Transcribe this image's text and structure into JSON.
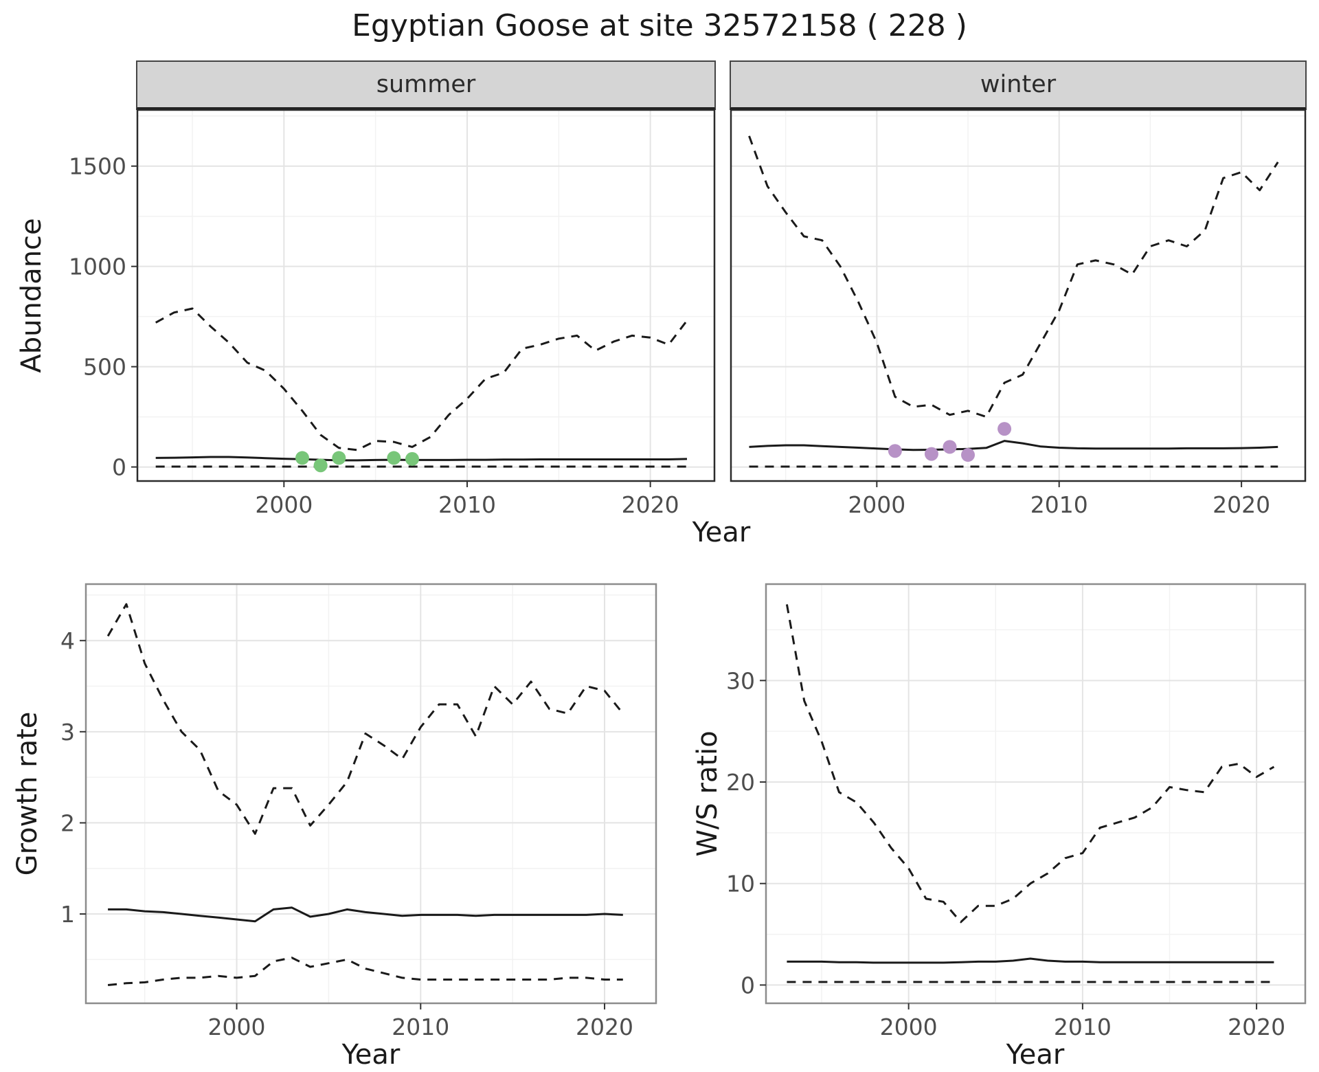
{
  "page": {
    "title": "Egyptian Goose at site 32572158 ( 228 )"
  },
  "colors": {
    "line": "#1a1a1a",
    "summer_points": "#78c679",
    "winter_points": "#b792c6",
    "strip_background": "#d5d5d5"
  },
  "chart_data": [
    {
      "type": "line",
      "facet": "summer",
      "xlabel": "Year",
      "ylabel": "Abundance",
      "xlim": [
        1992,
        2023.5
      ],
      "ylim": [
        -70,
        1780
      ],
      "x_ticks": [
        2000,
        2010,
        2020
      ],
      "y_ticks": [
        0,
        500,
        1000,
        1500
      ],
      "years": [
        1993,
        1994,
        1995,
        1996,
        1997,
        1998,
        1999,
        2000,
        2001,
        2002,
        2003,
        2004,
        2005,
        2006,
        2007,
        2008,
        2009,
        2010,
        2011,
        2012,
        2013,
        2014,
        2015,
        2016,
        2017,
        2018,
        2019,
        2020,
        2021,
        2022
      ],
      "series": [
        {
          "name": "upper-ci",
          "style": "dashed",
          "values": [
            720,
            770,
            790,
            700,
            620,
            520,
            480,
            390,
            280,
            160,
            95,
            85,
            130,
            125,
            100,
            150,
            260,
            340,
            440,
            470,
            590,
            610,
            640,
            655,
            580,
            625,
            655,
            645,
            610,
            730
          ]
        },
        {
          "name": "median",
          "style": "solid",
          "values": [
            45,
            46,
            48,
            50,
            50,
            47,
            44,
            41,
            39,
            36,
            33,
            33,
            35,
            36,
            35,
            35,
            35,
            36,
            36,
            37,
            37,
            38,
            38,
            38,
            38,
            38,
            38,
            38,
            38,
            40
          ]
        },
        {
          "name": "lower-ci",
          "style": "dashed",
          "values": [
            2,
            2,
            2,
            2,
            2,
            2,
            2,
            2,
            2,
            2,
            2,
            2,
            2,
            2,
            2,
            2,
            2,
            2,
            2,
            2,
            2,
            2,
            2,
            2,
            2,
            2,
            2,
            2,
            2,
            2
          ]
        }
      ],
      "points": {
        "name": "summer-observations",
        "color": "#78c679",
        "x": [
          2001,
          2002,
          2003,
          2006,
          2007
        ],
        "y": [
          45,
          8,
          45,
          45,
          40
        ]
      }
    },
    {
      "type": "line",
      "facet": "winter",
      "xlabel": "Year",
      "ylabel": "Abundance",
      "xlim": [
        1992,
        2023.5
      ],
      "ylim": [
        -70,
        1780
      ],
      "x_ticks": [
        2000,
        2010,
        2020
      ],
      "y_ticks": [
        0,
        500,
        1000,
        1500
      ],
      "years": [
        1993,
        1994,
        1995,
        1996,
        1997,
        1998,
        1999,
        2000,
        2001,
        2002,
        2003,
        2004,
        2005,
        2006,
        2007,
        2008,
        2009,
        2010,
        2011,
        2012,
        2013,
        2014,
        2015,
        2016,
        2017,
        2018,
        2019,
        2020,
        2021,
        2022
      ],
      "series": [
        {
          "name": "upper-ci",
          "style": "dashed",
          "values": [
            1650,
            1400,
            1270,
            1150,
            1130,
            1000,
            820,
            620,
            350,
            300,
            310,
            260,
            280,
            250,
            420,
            460,
            620,
            780,
            1010,
            1030,
            1010,
            960,
            1100,
            1130,
            1100,
            1180,
            1440,
            1470,
            1380,
            1520
          ]
        },
        {
          "name": "median",
          "style": "solid",
          "values": [
            100,
            105,
            108,
            108,
            104,
            100,
            96,
            92,
            88,
            85,
            86,
            88,
            90,
            95,
            130,
            118,
            102,
            96,
            93,
            92,
            92,
            92,
            92,
            92,
            93,
            93,
            93,
            94,
            96,
            100
          ]
        },
        {
          "name": "lower-ci",
          "style": "dashed",
          "values": [
            2,
            2,
            2,
            2,
            2,
            2,
            2,
            2,
            2,
            2,
            2,
            2,
            2,
            2,
            2,
            2,
            2,
            2,
            2,
            2,
            2,
            2,
            2,
            2,
            2,
            2,
            2,
            2,
            2,
            2
          ]
        }
      ],
      "points": {
        "name": "winter-observations",
        "color": "#b792c6",
        "x": [
          2001,
          2003,
          2004,
          2005,
          2007
        ],
        "y": [
          80,
          65,
          100,
          60,
          190
        ]
      }
    },
    {
      "type": "line",
      "facet": null,
      "xlabel": "Year",
      "ylabel": "Growth rate",
      "xlim": [
        1991.8,
        2022.8
      ],
      "ylim": [
        0.02,
        4.62
      ],
      "x_ticks": [
        2000,
        2010,
        2020
      ],
      "y_ticks": [
        1,
        2,
        3,
        4
      ],
      "years": [
        1993,
        1994,
        1995,
        1996,
        1997,
        1998,
        1999,
        2000,
        2001,
        2002,
        2003,
        2004,
        2005,
        2006,
        2007,
        2008,
        2009,
        2010,
        2011,
        2012,
        2013,
        2014,
        2015,
        2016,
        2017,
        2018,
        2019,
        2020,
        2021
      ],
      "series": [
        {
          "name": "upper-ci",
          "style": "dashed",
          "values": [
            4.05,
            4.4,
            3.75,
            3.35,
            3.0,
            2.8,
            2.35,
            2.2,
            1.88,
            2.38,
            2.38,
            1.97,
            2.2,
            2.45,
            2.98,
            2.85,
            2.7,
            3.05,
            3.3,
            3.3,
            2.95,
            3.5,
            3.3,
            3.55,
            3.25,
            3.2,
            3.5,
            3.45,
            3.2
          ]
        },
        {
          "name": "median",
          "style": "solid",
          "values": [
            1.05,
            1.05,
            1.03,
            1.02,
            1.0,
            0.98,
            0.96,
            0.94,
            0.92,
            1.05,
            1.07,
            0.97,
            1.0,
            1.05,
            1.02,
            1.0,
            0.98,
            0.99,
            0.99,
            0.99,
            0.98,
            0.99,
            0.99,
            0.99,
            0.99,
            0.99,
            0.99,
            1.0,
            0.99
          ]
        },
        {
          "name": "lower-ci",
          "style": "dashed",
          "values": [
            0.22,
            0.24,
            0.25,
            0.28,
            0.3,
            0.3,
            0.32,
            0.3,
            0.32,
            0.48,
            0.52,
            0.42,
            0.46,
            0.5,
            0.4,
            0.35,
            0.3,
            0.28,
            0.28,
            0.28,
            0.28,
            0.28,
            0.28,
            0.28,
            0.28,
            0.3,
            0.3,
            0.28,
            0.28
          ]
        }
      ],
      "points": null
    },
    {
      "type": "line",
      "facet": null,
      "xlabel": "Year",
      "ylabel": "W/S ratio",
      "xlim": [
        1991.8,
        2022.8
      ],
      "ylim": [
        -1.8,
        39.5
      ],
      "x_ticks": [
        2000,
        2010,
        2020
      ],
      "y_ticks": [
        0,
        10,
        20,
        30
      ],
      "years": [
        1993,
        1994,
        1995,
        1996,
        1997,
        1998,
        1999,
        2000,
        2001,
        2002,
        2003,
        2004,
        2005,
        2006,
        2007,
        2008,
        2009,
        2010,
        2011,
        2012,
        2013,
        2014,
        2015,
        2016,
        2017,
        2018,
        2019,
        2020,
        2021
      ],
      "series": [
        {
          "name": "upper-ci",
          "style": "dashed",
          "values": [
            37.5,
            28,
            24,
            19,
            18,
            16,
            13.5,
            11.5,
            8.5,
            8.2,
            6.2,
            7.8,
            7.8,
            8.5,
            10,
            11,
            12.5,
            13,
            15.5,
            16,
            16.5,
            17.5,
            19.5,
            19.2,
            19,
            21.5,
            21.8,
            20.5,
            21.5
          ]
        },
        {
          "name": "median",
          "style": "solid",
          "values": [
            2.3,
            2.3,
            2.3,
            2.25,
            2.25,
            2.2,
            2.2,
            2.2,
            2.2,
            2.2,
            2.25,
            2.3,
            2.3,
            2.4,
            2.6,
            2.4,
            2.3,
            2.3,
            2.25,
            2.25,
            2.25,
            2.25,
            2.25,
            2.25,
            2.25,
            2.25,
            2.25,
            2.25,
            2.25
          ]
        },
        {
          "name": "lower-ci",
          "style": "dashed",
          "values": [
            0.3,
            0.3,
            0.3,
            0.3,
            0.3,
            0.3,
            0.3,
            0.3,
            0.3,
            0.3,
            0.3,
            0.3,
            0.3,
            0.3,
            0.3,
            0.3,
            0.3,
            0.3,
            0.3,
            0.3,
            0.3,
            0.3,
            0.3,
            0.3,
            0.3,
            0.3,
            0.3,
            0.3,
            0.3
          ]
        }
      ],
      "points": null
    }
  ]
}
